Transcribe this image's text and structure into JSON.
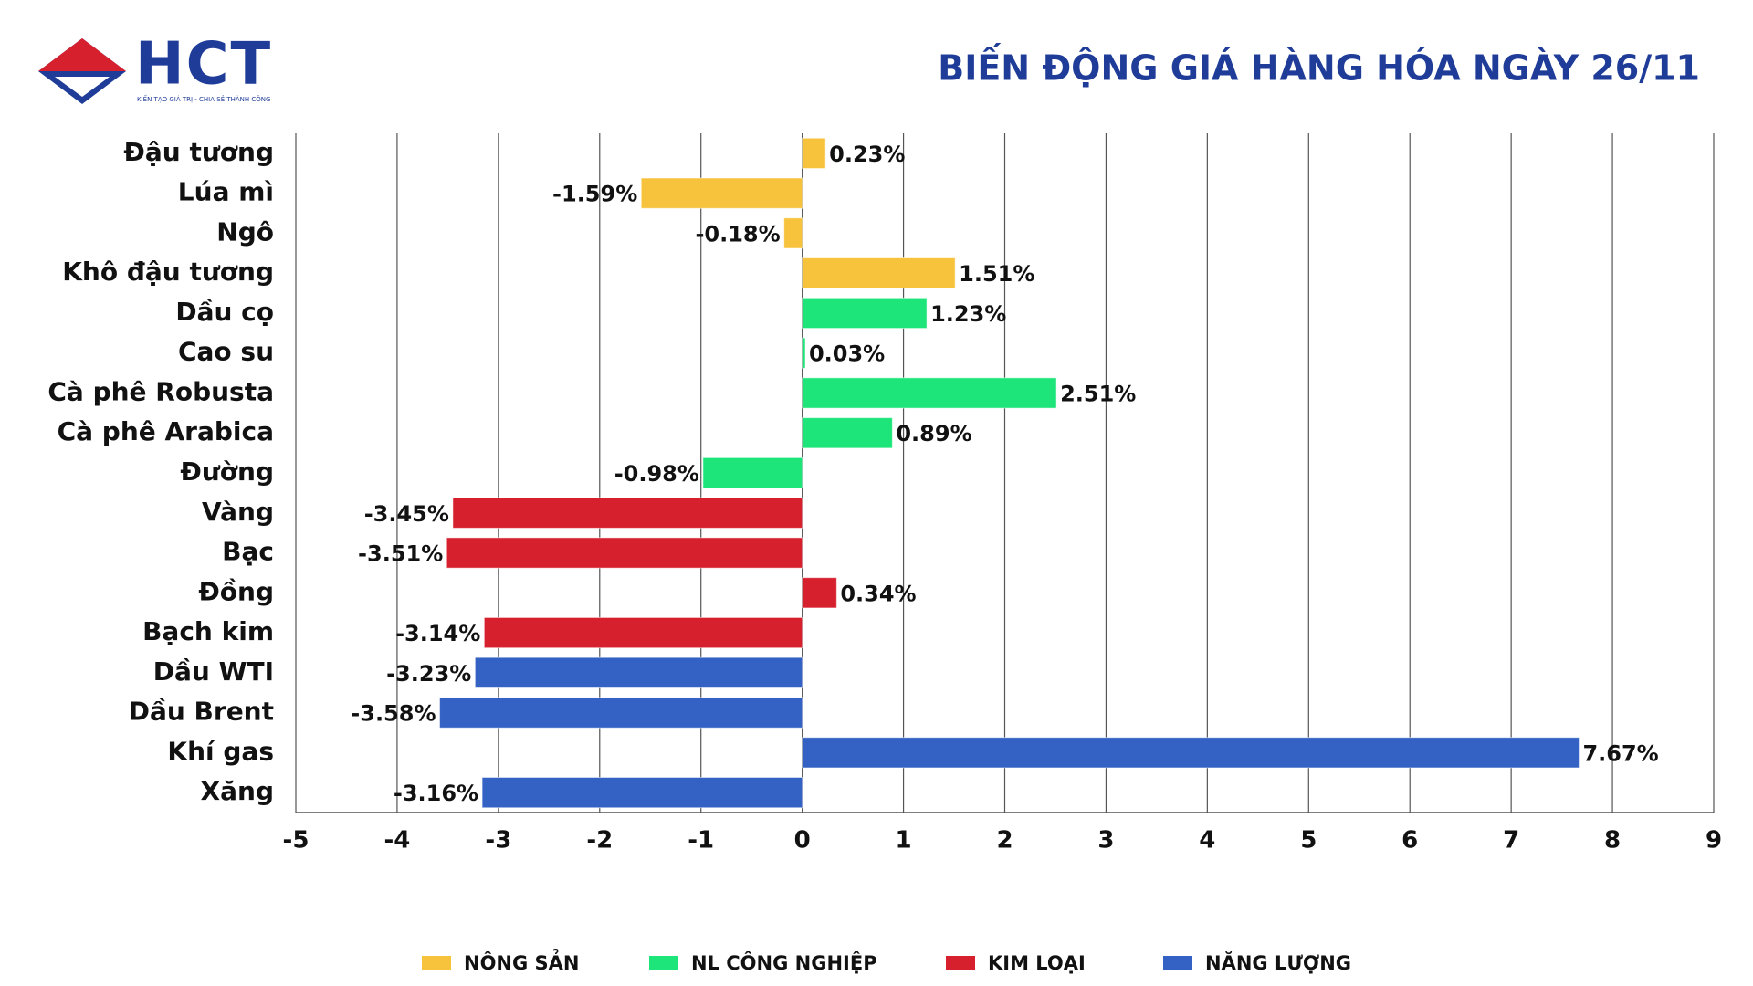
{
  "logo": {
    "text": "HCT",
    "tagline": "KIẾN TẠO GIÁ TRỊ - CHIA SẺ THÀNH CÔNG"
  },
  "chart_data": {
    "type": "bar",
    "orientation": "horizontal",
    "title": "BIẾN ĐỘNG GIÁ HÀNG HÓA NGÀY 26/11",
    "categories": [
      "Đậu tương",
      "Lúa mì",
      "Ngô",
      "Khô đậu tương",
      "Dầu cọ",
      "Cao su",
      "Cà phê Robusta",
      "Cà phê Arabica",
      "Đường",
      "Vàng",
      "Bạc",
      "Đồng",
      "Bạch kim",
      "Dầu WTI",
      "Dầu Brent",
      "Khí gas",
      "Xăng"
    ],
    "series": [
      {
        "name": "NÔNG SẢN",
        "color": "#f8c33c",
        "values": [
          0.23,
          -1.59,
          -0.18,
          1.51,
          null,
          null,
          null,
          null,
          null,
          null,
          null,
          null,
          null,
          null,
          null,
          null,
          null
        ],
        "value_labels": [
          "0.23%",
          "-1.59%",
          "-0.18%",
          "1.51%",
          null,
          null,
          null,
          null,
          null,
          null,
          null,
          null,
          null,
          null,
          null,
          null,
          null
        ]
      },
      {
        "name": "NL CÔNG NGHIỆP",
        "color": "#1de57a",
        "values": [
          null,
          null,
          null,
          null,
          1.23,
          0.03,
          2.51,
          0.89,
          -0.98,
          null,
          null,
          null,
          null,
          null,
          null,
          null,
          null
        ],
        "value_labels": [
          null,
          null,
          null,
          null,
          "1.23%",
          "0.03%",
          "2.51%",
          "0.89%",
          "-0.98%",
          null,
          null,
          null,
          null,
          null,
          null,
          null,
          null
        ]
      },
      {
        "name": "KIM LOẠI",
        "color": "#d7202e",
        "values": [
          null,
          null,
          null,
          null,
          null,
          null,
          null,
          null,
          null,
          -3.45,
          -3.51,
          0.34,
          -3.14,
          null,
          null,
          null,
          null
        ],
        "value_labels": [
          null,
          null,
          null,
          null,
          null,
          null,
          null,
          null,
          null,
          "-3.45%",
          "-3.51%",
          "0.34%",
          "-3.14%",
          null,
          null,
          null,
          null
        ]
      },
      {
        "name": "NĂNG LƯỢNG",
        "color": "#3462c4",
        "values": [
          null,
          null,
          null,
          null,
          null,
          null,
          null,
          null,
          null,
          null,
          null,
          null,
          null,
          -3.23,
          -3.58,
          7.67,
          -3.16
        ],
        "value_labels": [
          null,
          null,
          null,
          null,
          null,
          null,
          null,
          null,
          null,
          null,
          null,
          null,
          null,
          "-3.23%",
          "-3.58%",
          "7.67%",
          "-3.16%"
        ]
      }
    ],
    "xlim": [
      -5,
      9
    ],
    "xticks": [
      -5,
      -4,
      -3,
      -2,
      -1,
      0,
      1,
      2,
      3,
      4,
      5,
      6,
      7,
      8,
      9
    ],
    "grid": true,
    "legend": "bottom"
  }
}
